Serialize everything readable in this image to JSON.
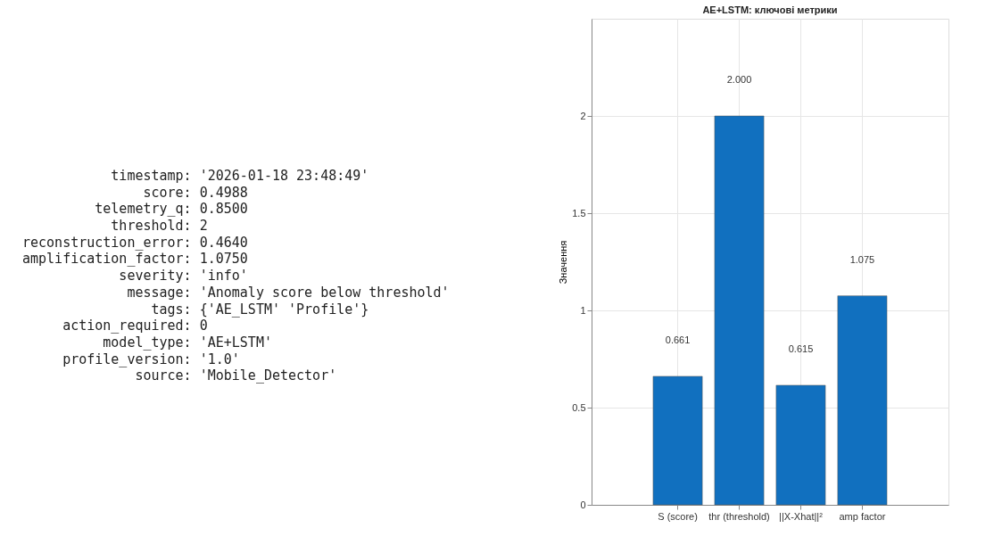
{
  "chart_data": [
    {
      "type": "other",
      "annotations": [
        "timestamp: '2026-01-18 23:48:49'",
        "score: 0.4988",
        "telemetry_q: 0.8500",
        "threshold: 2",
        "reconstruction_error: 0.4640",
        "amplification_factor: 1.0750",
        "severity: 'info'",
        "message: 'Anomaly score below threshold'",
        "tags: {'AE_LSTM'  'Profile'}",
        "action_required: 0",
        "model_type: 'AE+LSTM'",
        "profile_version: '1.0'",
        "source: 'Mobile_Detector'"
      ]
    },
    {
      "type": "bar",
      "title": "AE+LSTM: ключові метрики",
      "ylabel": "Значення",
      "categories": [
        "S (score)",
        "thr (threshold)",
        "||X-Xhat||²",
        "amp factor"
      ],
      "values": [
        0.661,
        2,
        0.615,
        1.075
      ],
      "value_labels": [
        "0.661",
        "2.000",
        "0.615",
        "1.075"
      ],
      "color": "#1170bf",
      "ylim": [
        0,
        2.5
      ],
      "yticks": [
        0,
        0.5,
        1,
        1.5,
        2
      ],
      "grid": true
    }
  ]
}
